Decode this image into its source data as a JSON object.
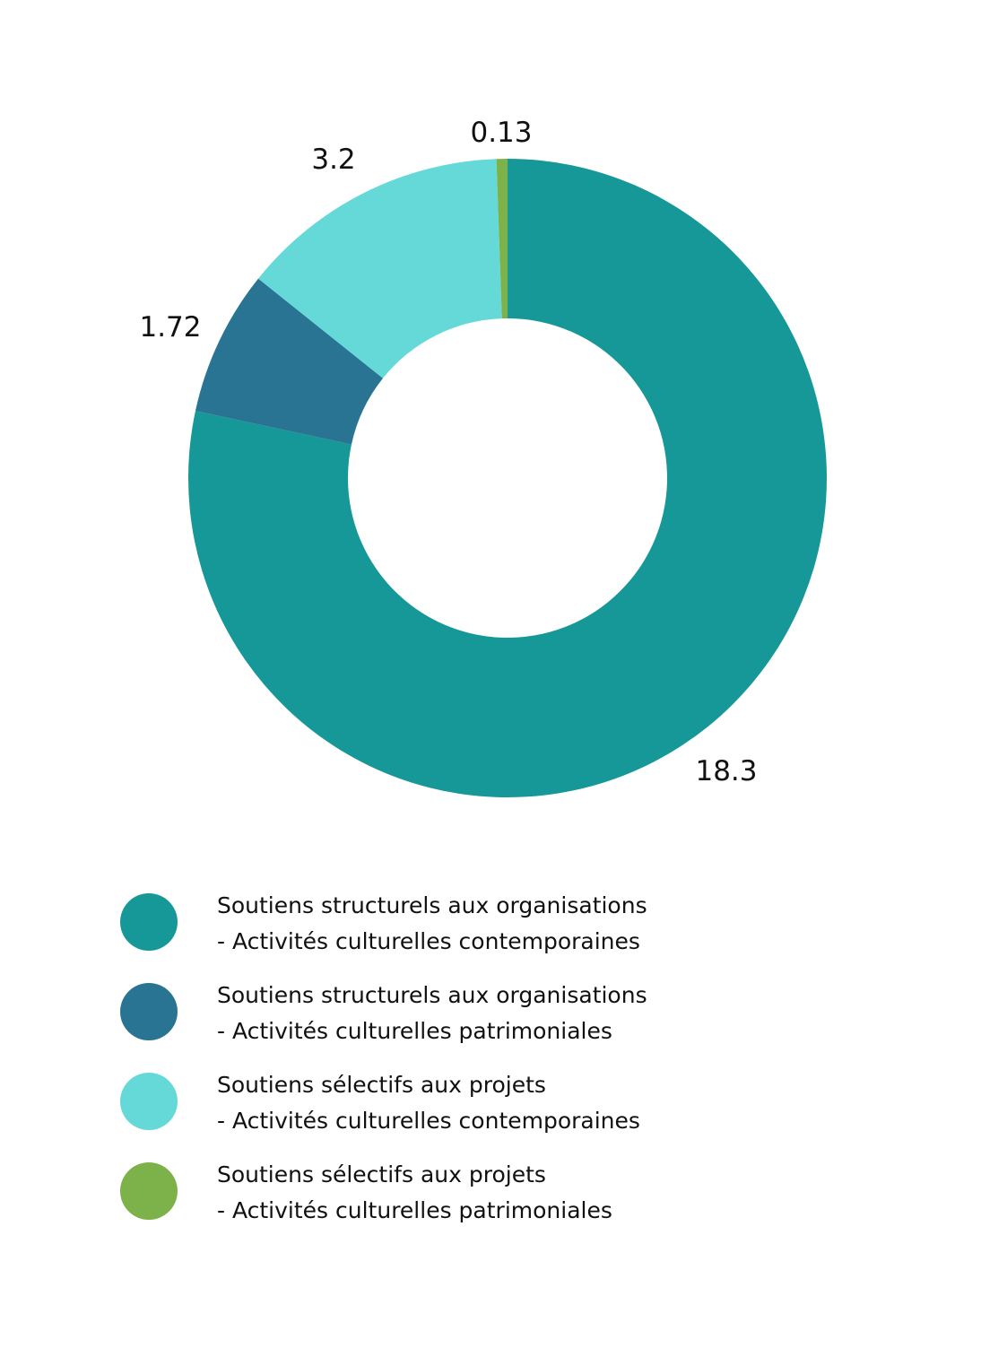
{
  "chart_data": {
    "type": "pie",
    "variant": "donut",
    "title": "",
    "categories": [
      "Soutiens structurels aux organisations - Activités culturelles contemporaines",
      "Soutiens structurels aux organisations - Activités culturelles patrimoniales",
      "Soutiens sélectifs aux projets - Activités culturelles contemporaines",
      "Soutiens sélectifs aux projets - Activités culturelles patrimoniales"
    ],
    "values": [
      18.3,
      1.72,
      3.2,
      0.13
    ],
    "value_labels": [
      "18.3",
      "1.72",
      "3.2",
      "0.13"
    ],
    "colors": [
      "#179898",
      "#287492",
      "#65d8d8",
      "#7db14a"
    ],
    "legend_placement": "bottom",
    "legend": [
      {
        "line1": "Soutiens structurels aux organisations",
        "line2": "- Activités culturelles contemporaines",
        "color": "#179898"
      },
      {
        "line1": "Soutiens structurels aux organisations",
        "line2": "- Activités culturelles patrimoniales",
        "color": "#287492"
      },
      {
        "line1": "Soutiens sélectifs aux projets",
        "line2": "- Activités culturelles contemporaines",
        "color": "#65d8d8"
      },
      {
        "line1": "Soutiens sélectifs aux projets",
        "line2": "- Activités culturelles patrimoniales",
        "color": "#7db14a"
      }
    ]
  }
}
